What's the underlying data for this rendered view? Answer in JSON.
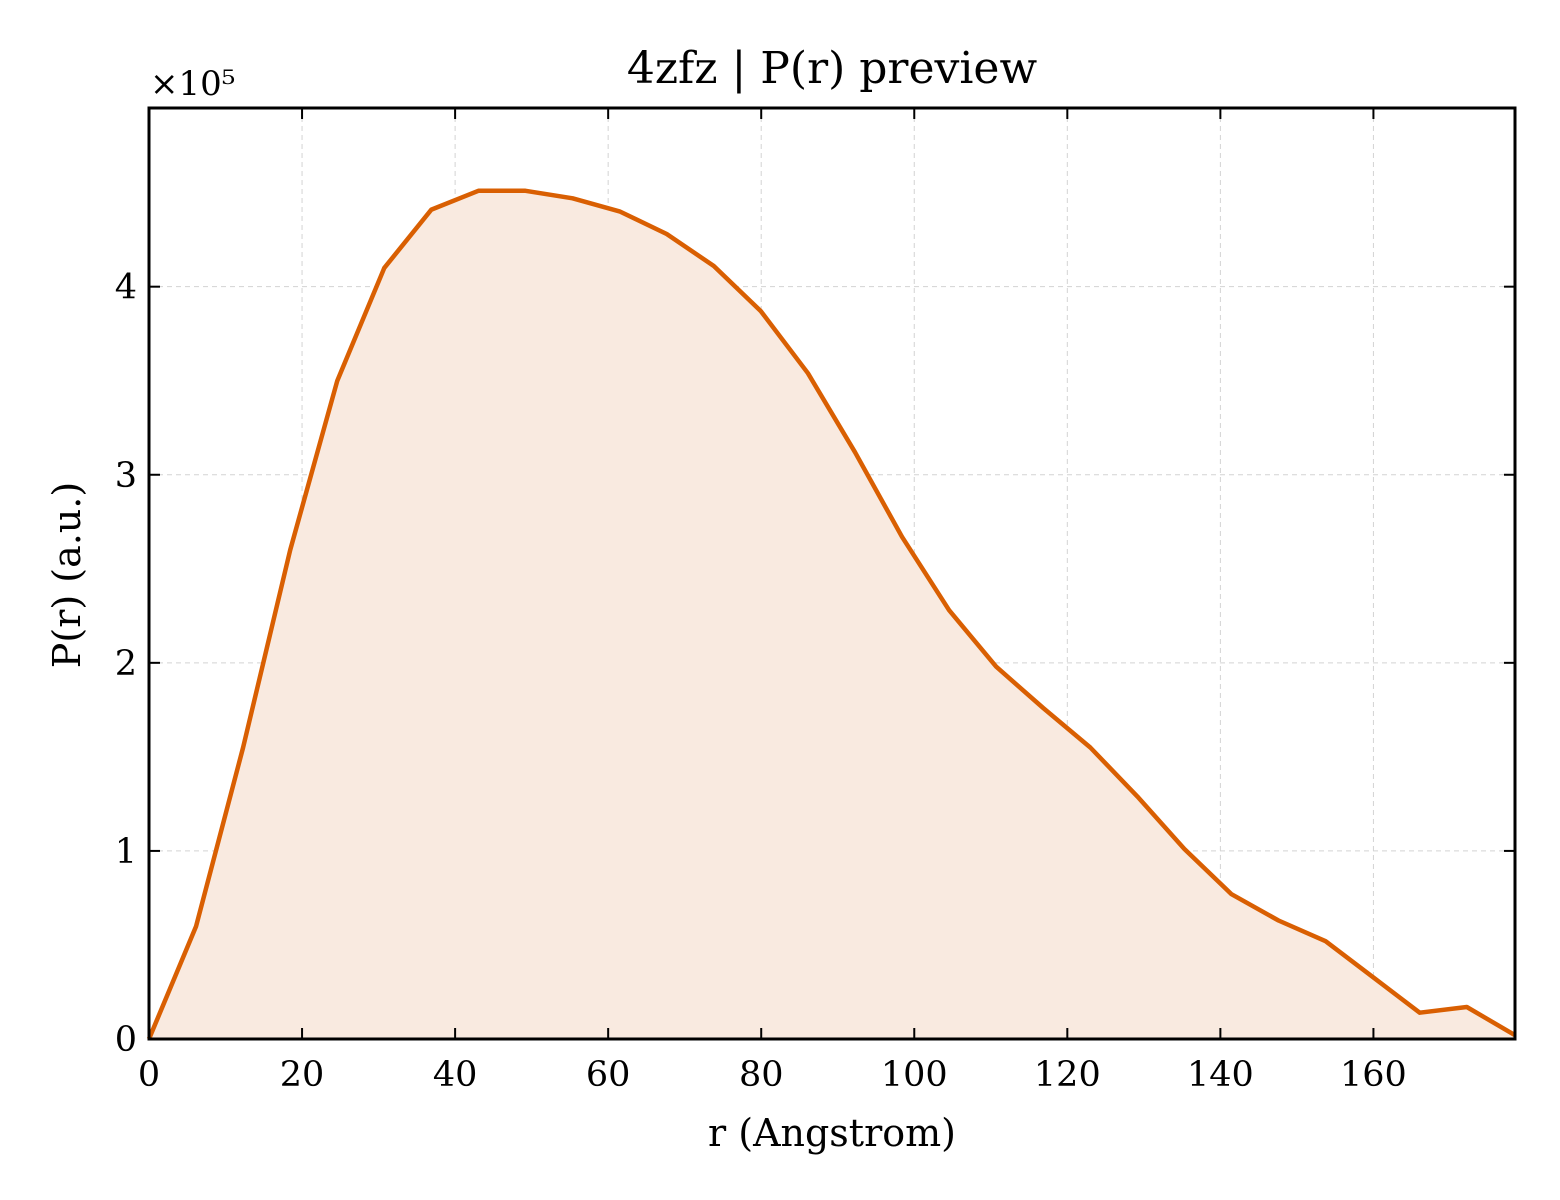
{
  "chart_data": {
    "type": "area",
    "title": "4zfz | P(r) preview",
    "xlabel": "r (Angstrom)",
    "ylabel": "P(r) (a.u.)",
    "y_multiplier_label": "×10⁵",
    "xlim": [
      0,
      178.5
    ],
    "ylim": [
      0,
      4.95
    ],
    "x_ticks": [
      0,
      20,
      40,
      60,
      80,
      100,
      120,
      140,
      160
    ],
    "y_ticks": [
      0,
      1,
      2,
      3,
      4
    ],
    "grid": true,
    "series": [
      {
        "x": [
          0,
          6.15,
          12.3,
          18.45,
          24.6,
          30.75,
          36.9,
          43.05,
          49.2,
          55.35,
          61.5,
          67.65,
          73.8,
          79.95,
          86.1,
          92.25,
          98.4,
          104.55,
          110.7,
          116.85,
          123.0,
          129.15,
          135.3,
          141.45,
          147.6,
          153.75,
          159.9,
          166.05,
          172.2,
          178.5
        ],
        "y": [
          0,
          0.6,
          1.55,
          2.6,
          3.5,
          4.1,
          4.41,
          4.51,
          4.51,
          4.47,
          4.4,
          4.28,
          4.11,
          3.87,
          3.54,
          3.12,
          2.67,
          2.28,
          1.98,
          1.76,
          1.55,
          1.29,
          1.01,
          0.77,
          0.63,
          0.52,
          0.33,
          0.14,
          0.17,
          0.02
        ]
      }
    ],
    "colors": {
      "line": "#d95f02",
      "fill": "#f9eae0",
      "grid": "#d3d3d3",
      "axes": "#000000"
    }
  }
}
